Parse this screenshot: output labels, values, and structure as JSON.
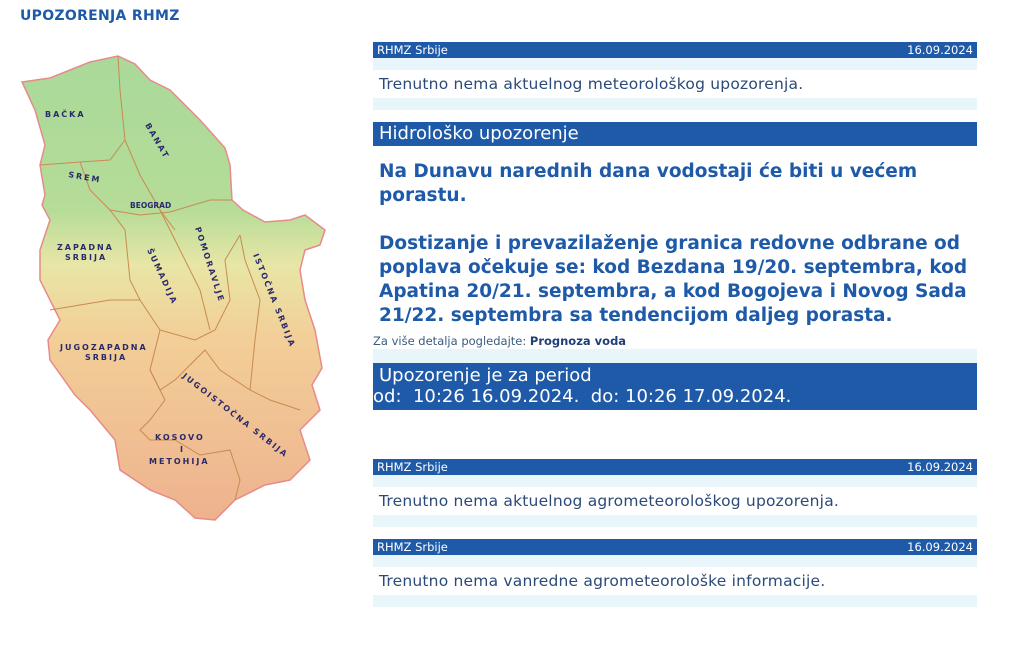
{
  "page_title": "UPOZORENJA RHMZ",
  "map": {
    "regions": [
      "BAČKA",
      "BANAT",
      "SREM",
      "BEOGRAD",
      "ZAPADNA",
      "SRBIJA",
      "POMORAVLJE",
      "ŠUMADIJA",
      "ISTOČNA SRBIJA",
      "JUGOZAPADNA",
      "SRBIJA",
      "JUGOISTOČNA SRBIJA",
      "KOSOVO",
      "I",
      "METOHIJA"
    ]
  },
  "meteo": {
    "source": "RHMZ Srbije",
    "date": "16.09.2024",
    "message": "Trenutno nema aktuelnog meteorološkog upozorenja."
  },
  "hydro": {
    "title": "Hidrološko upozorenje",
    "text1": "Na Dunavu narednih dana vodostaji će biti u većem porastu.",
    "text2": "Dostizanje i prevazilaženje granica redovne odbrane od poplava očekuje se: kod Bezdana 19/20. septembra, kod Apatina 20/21. septembra, a kod Bogojeva i Novog Sada 21/22. septembra sa tendencijom daljeg porasta.",
    "more_label": "Za više detalja pogledajte:",
    "more_link": "Prognoza voda",
    "period_line1": "Upozorenje je za period",
    "period_line2": "od:  10:26 16.09.2024.  do: 10:26 17.09.2024."
  },
  "agro": {
    "source": "RHMZ Srbije",
    "date": "16.09.2024",
    "message": "Trenutno nema aktuelnog agrometeorološkog upozorenja."
  },
  "agro_info": {
    "source": "RHMZ Srbije",
    "date": "16.09.2024",
    "message": "Trenutno nema vanredne agrometeorološke informacije."
  }
}
